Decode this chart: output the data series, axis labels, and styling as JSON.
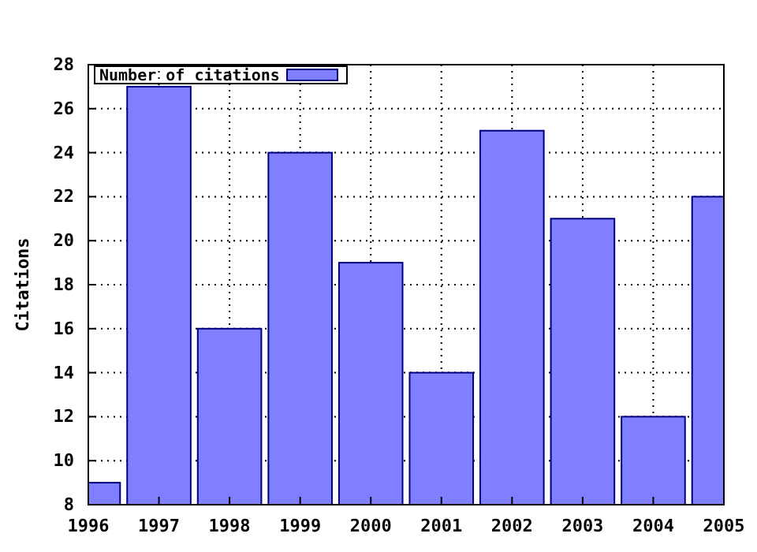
{
  "chart_data": {
    "type": "bar",
    "ylabel": "Citations",
    "x": [
      1996,
      1997,
      1998,
      1999,
      2000,
      2001,
      2002,
      2003,
      2004,
      2005
    ],
    "series": [
      {
        "name": "Number of citations",
        "color": "#7f7fff",
        "values": [
          9,
          27,
          16,
          24,
          19,
          14,
          25,
          21,
          12,
          22
        ]
      }
    ],
    "xlim": [
      1996,
      2005
    ],
    "xticks": [
      1996,
      1997,
      1998,
      1999,
      2000,
      2001,
      2002,
      2003,
      2004,
      2005
    ],
    "ylim": [
      8,
      28
    ],
    "yticks": [
      8,
      10,
      12,
      14,
      16,
      18,
      20,
      22,
      24,
      26,
      28
    ],
    "grid": true,
    "legend": "top left"
  }
}
